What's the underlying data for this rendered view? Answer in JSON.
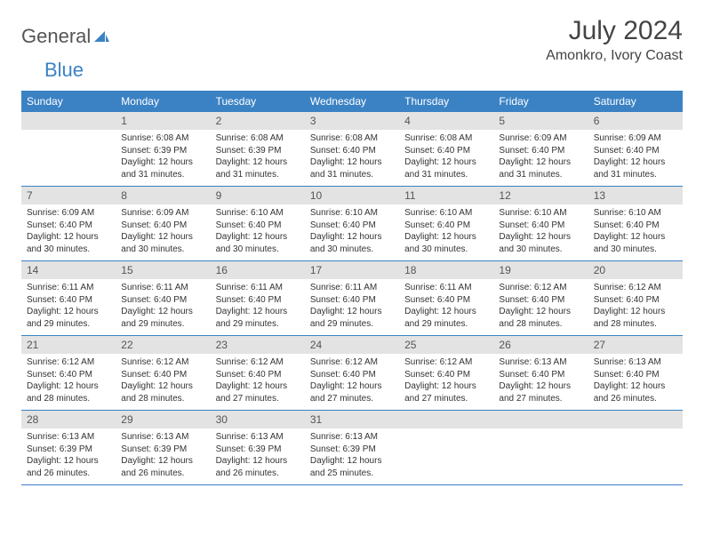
{
  "logo": {
    "text1": "General",
    "text2": "Blue"
  },
  "title": "July 2024",
  "location": "Amonkro, Ivory Coast",
  "colors": {
    "header_bg": "#3b82c4",
    "header_text": "#ffffff",
    "daynum_bg": "#e3e3e3",
    "daynum_text": "#555555",
    "body_text": "#333333",
    "row_border": "#3b82c4",
    "page_bg": "#ffffff"
  },
  "weekdays": [
    "Sunday",
    "Monday",
    "Tuesday",
    "Wednesday",
    "Thursday",
    "Friday",
    "Saturday"
  ],
  "weeks": [
    [
      {
        "num": "",
        "sunrise": "",
        "sunset": "",
        "daylight": ""
      },
      {
        "num": "1",
        "sunrise": "Sunrise: 6:08 AM",
        "sunset": "Sunset: 6:39 PM",
        "daylight": "Daylight: 12 hours and 31 minutes."
      },
      {
        "num": "2",
        "sunrise": "Sunrise: 6:08 AM",
        "sunset": "Sunset: 6:39 PM",
        "daylight": "Daylight: 12 hours and 31 minutes."
      },
      {
        "num": "3",
        "sunrise": "Sunrise: 6:08 AM",
        "sunset": "Sunset: 6:40 PM",
        "daylight": "Daylight: 12 hours and 31 minutes."
      },
      {
        "num": "4",
        "sunrise": "Sunrise: 6:08 AM",
        "sunset": "Sunset: 6:40 PM",
        "daylight": "Daylight: 12 hours and 31 minutes."
      },
      {
        "num": "5",
        "sunrise": "Sunrise: 6:09 AM",
        "sunset": "Sunset: 6:40 PM",
        "daylight": "Daylight: 12 hours and 31 minutes."
      },
      {
        "num": "6",
        "sunrise": "Sunrise: 6:09 AM",
        "sunset": "Sunset: 6:40 PM",
        "daylight": "Daylight: 12 hours and 31 minutes."
      }
    ],
    [
      {
        "num": "7",
        "sunrise": "Sunrise: 6:09 AM",
        "sunset": "Sunset: 6:40 PM",
        "daylight": "Daylight: 12 hours and 30 minutes."
      },
      {
        "num": "8",
        "sunrise": "Sunrise: 6:09 AM",
        "sunset": "Sunset: 6:40 PM",
        "daylight": "Daylight: 12 hours and 30 minutes."
      },
      {
        "num": "9",
        "sunrise": "Sunrise: 6:10 AM",
        "sunset": "Sunset: 6:40 PM",
        "daylight": "Daylight: 12 hours and 30 minutes."
      },
      {
        "num": "10",
        "sunrise": "Sunrise: 6:10 AM",
        "sunset": "Sunset: 6:40 PM",
        "daylight": "Daylight: 12 hours and 30 minutes."
      },
      {
        "num": "11",
        "sunrise": "Sunrise: 6:10 AM",
        "sunset": "Sunset: 6:40 PM",
        "daylight": "Daylight: 12 hours and 30 minutes."
      },
      {
        "num": "12",
        "sunrise": "Sunrise: 6:10 AM",
        "sunset": "Sunset: 6:40 PM",
        "daylight": "Daylight: 12 hours and 30 minutes."
      },
      {
        "num": "13",
        "sunrise": "Sunrise: 6:10 AM",
        "sunset": "Sunset: 6:40 PM",
        "daylight": "Daylight: 12 hours and 30 minutes."
      }
    ],
    [
      {
        "num": "14",
        "sunrise": "Sunrise: 6:11 AM",
        "sunset": "Sunset: 6:40 PM",
        "daylight": "Daylight: 12 hours and 29 minutes."
      },
      {
        "num": "15",
        "sunrise": "Sunrise: 6:11 AM",
        "sunset": "Sunset: 6:40 PM",
        "daylight": "Daylight: 12 hours and 29 minutes."
      },
      {
        "num": "16",
        "sunrise": "Sunrise: 6:11 AM",
        "sunset": "Sunset: 6:40 PM",
        "daylight": "Daylight: 12 hours and 29 minutes."
      },
      {
        "num": "17",
        "sunrise": "Sunrise: 6:11 AM",
        "sunset": "Sunset: 6:40 PM",
        "daylight": "Daylight: 12 hours and 29 minutes."
      },
      {
        "num": "18",
        "sunrise": "Sunrise: 6:11 AM",
        "sunset": "Sunset: 6:40 PM",
        "daylight": "Daylight: 12 hours and 29 minutes."
      },
      {
        "num": "19",
        "sunrise": "Sunrise: 6:12 AM",
        "sunset": "Sunset: 6:40 PM",
        "daylight": "Daylight: 12 hours and 28 minutes."
      },
      {
        "num": "20",
        "sunrise": "Sunrise: 6:12 AM",
        "sunset": "Sunset: 6:40 PM",
        "daylight": "Daylight: 12 hours and 28 minutes."
      }
    ],
    [
      {
        "num": "21",
        "sunrise": "Sunrise: 6:12 AM",
        "sunset": "Sunset: 6:40 PM",
        "daylight": "Daylight: 12 hours and 28 minutes."
      },
      {
        "num": "22",
        "sunrise": "Sunrise: 6:12 AM",
        "sunset": "Sunset: 6:40 PM",
        "daylight": "Daylight: 12 hours and 28 minutes."
      },
      {
        "num": "23",
        "sunrise": "Sunrise: 6:12 AM",
        "sunset": "Sunset: 6:40 PM",
        "daylight": "Daylight: 12 hours and 27 minutes."
      },
      {
        "num": "24",
        "sunrise": "Sunrise: 6:12 AM",
        "sunset": "Sunset: 6:40 PM",
        "daylight": "Daylight: 12 hours and 27 minutes."
      },
      {
        "num": "25",
        "sunrise": "Sunrise: 6:12 AM",
        "sunset": "Sunset: 6:40 PM",
        "daylight": "Daylight: 12 hours and 27 minutes."
      },
      {
        "num": "26",
        "sunrise": "Sunrise: 6:13 AM",
        "sunset": "Sunset: 6:40 PM",
        "daylight": "Daylight: 12 hours and 27 minutes."
      },
      {
        "num": "27",
        "sunrise": "Sunrise: 6:13 AM",
        "sunset": "Sunset: 6:40 PM",
        "daylight": "Daylight: 12 hours and 26 minutes."
      }
    ],
    [
      {
        "num": "28",
        "sunrise": "Sunrise: 6:13 AM",
        "sunset": "Sunset: 6:39 PM",
        "daylight": "Daylight: 12 hours and 26 minutes."
      },
      {
        "num": "29",
        "sunrise": "Sunrise: 6:13 AM",
        "sunset": "Sunset: 6:39 PM",
        "daylight": "Daylight: 12 hours and 26 minutes."
      },
      {
        "num": "30",
        "sunrise": "Sunrise: 6:13 AM",
        "sunset": "Sunset: 6:39 PM",
        "daylight": "Daylight: 12 hours and 26 minutes."
      },
      {
        "num": "31",
        "sunrise": "Sunrise: 6:13 AM",
        "sunset": "Sunset: 6:39 PM",
        "daylight": "Daylight: 12 hours and 25 minutes."
      },
      {
        "num": "",
        "sunrise": "",
        "sunset": "",
        "daylight": ""
      },
      {
        "num": "",
        "sunrise": "",
        "sunset": "",
        "daylight": ""
      },
      {
        "num": "",
        "sunrise": "",
        "sunset": "",
        "daylight": ""
      }
    ]
  ]
}
